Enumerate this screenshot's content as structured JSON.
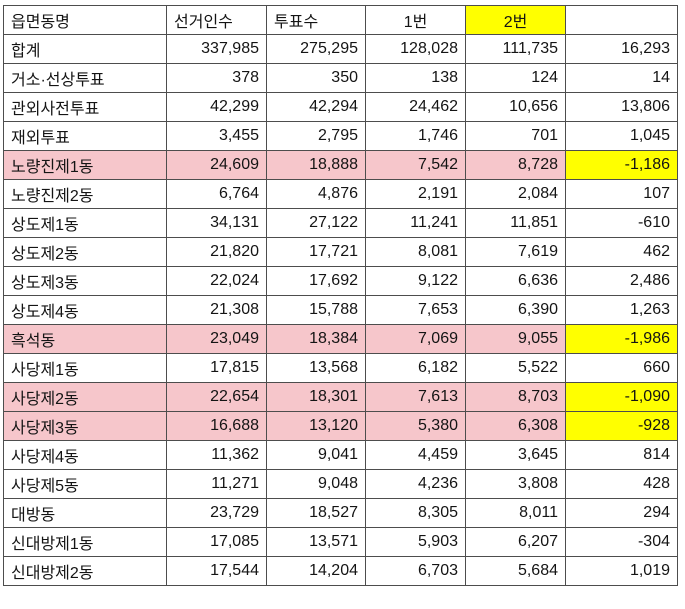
{
  "colors": {
    "header_highlight": "#ffff00",
    "row_highlight": "#f6c6cb",
    "diff_highlight": "#ffff00",
    "grid_line": "#4d4d4d"
  },
  "table": {
    "columns": [
      "읍면동명",
      "선거인수",
      "투표수",
      "1번",
      "2번",
      ""
    ],
    "rows": [
      {
        "name": "합계",
        "values": [
          "337,985",
          "275,295",
          "128,028",
          "111,735",
          "16,293"
        ],
        "highlight": false
      },
      {
        "name": "거소·선상투표",
        "values": [
          "378",
          "350",
          "138",
          "124",
          "14"
        ],
        "highlight": false
      },
      {
        "name": "관외사전투표",
        "values": [
          "42,299",
          "42,294",
          "24,462",
          "10,656",
          "13,806"
        ],
        "highlight": false
      },
      {
        "name": "재외투표",
        "values": [
          "3,455",
          "2,795",
          "1,746",
          "701",
          "1,045"
        ],
        "highlight": false
      },
      {
        "name": "노량진제1동",
        "values": [
          "24,609",
          "18,888",
          "7,542",
          "8,728",
          "-1,186"
        ],
        "highlight": true
      },
      {
        "name": "노량진제2동",
        "values": [
          "6,764",
          "4,876",
          "2,191",
          "2,084",
          "107"
        ],
        "highlight": false
      },
      {
        "name": "상도제1동",
        "values": [
          "34,131",
          "27,122",
          "11,241",
          "11,851",
          "-610"
        ],
        "highlight": false
      },
      {
        "name": "상도제2동",
        "values": [
          "21,820",
          "17,721",
          "8,081",
          "7,619",
          "462"
        ],
        "highlight": false
      },
      {
        "name": "상도제3동",
        "values": [
          "22,024",
          "17,692",
          "9,122",
          "6,636",
          "2,486"
        ],
        "highlight": false
      },
      {
        "name": "상도제4동",
        "values": [
          "21,308",
          "15,788",
          "7,653",
          "6,390",
          "1,263"
        ],
        "highlight": false
      },
      {
        "name": "흑석동",
        "values": [
          "23,049",
          "18,384",
          "7,069",
          "9,055",
          "-1,986"
        ],
        "highlight": true
      },
      {
        "name": "사당제1동",
        "values": [
          "17,815",
          "13,568",
          "6,182",
          "5,522",
          "660"
        ],
        "highlight": false
      },
      {
        "name": "사당제2동",
        "values": [
          "22,654",
          "18,301",
          "7,613",
          "8,703",
          "-1,090"
        ],
        "highlight": true
      },
      {
        "name": "사당제3동",
        "values": [
          "16,688",
          "13,120",
          "5,380",
          "6,308",
          "-928"
        ],
        "highlight": true
      },
      {
        "name": "사당제4동",
        "values": [
          "11,362",
          "9,041",
          "4,459",
          "3,645",
          "814"
        ],
        "highlight": false
      },
      {
        "name": "사당제5동",
        "values": [
          "11,271",
          "9,048",
          "4,236",
          "3,808",
          "428"
        ],
        "highlight": false
      },
      {
        "name": "대방동",
        "values": [
          "23,729",
          "18,527",
          "8,305",
          "8,011",
          "294"
        ],
        "highlight": false
      },
      {
        "name": "신대방제1동",
        "values": [
          "17,085",
          "13,571",
          "5,903",
          "6,207",
          "-304"
        ],
        "highlight": false
      },
      {
        "name": "신대방제2동",
        "values": [
          "17,544",
          "14,204",
          "6,703",
          "5,684",
          "1,019"
        ],
        "highlight": false
      }
    ]
  }
}
